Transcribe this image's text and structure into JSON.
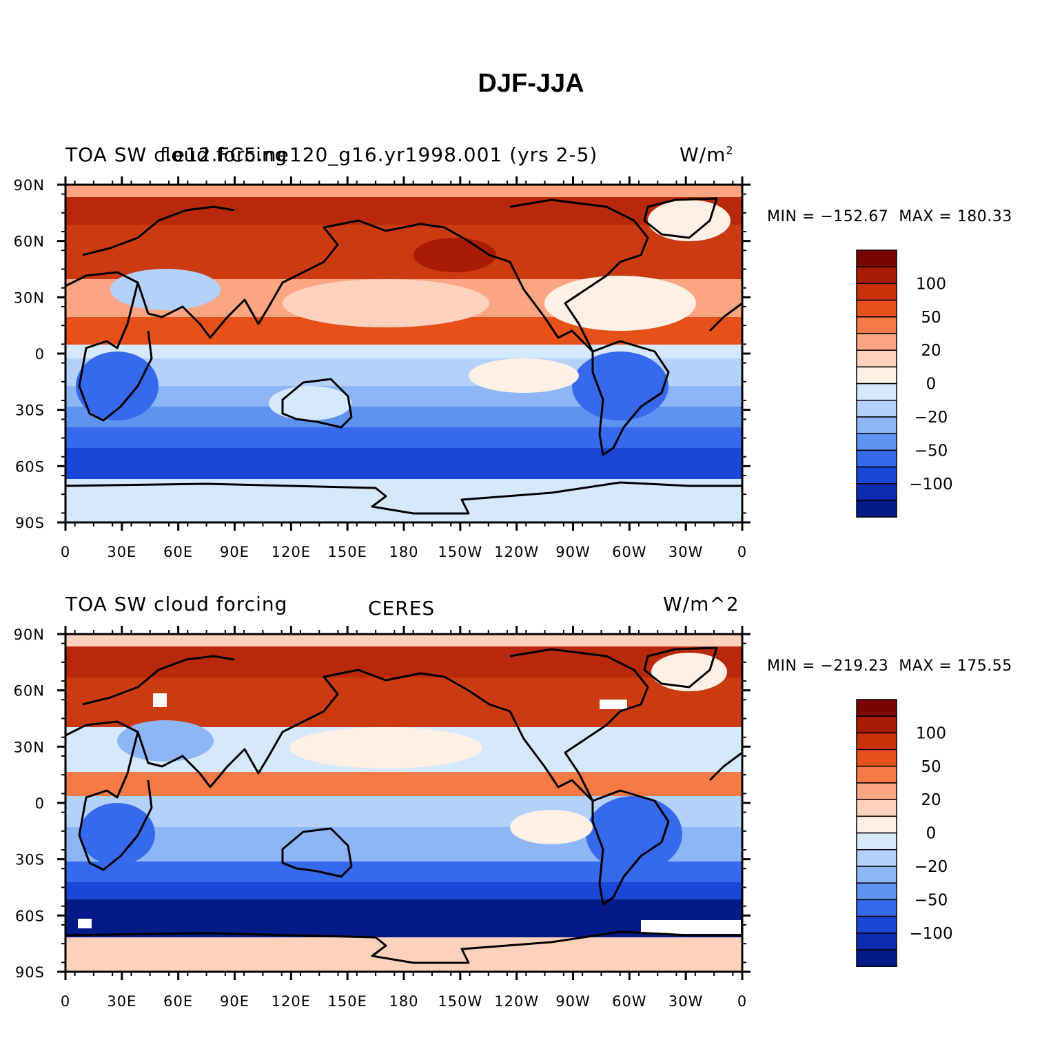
{
  "title": "DJF-JJA",
  "panels": [
    {
      "left_label": "TOA SW cloud forcing",
      "center_label": "f.e12.FC5.ne120_g16.yr1998.001 (yrs 2-5)",
      "right_label": "W/m",
      "right_label_sup": "2",
      "min_label": "MIN",
      "min_value": "−152.67",
      "max_label": "MAX",
      "max_value": "180.33"
    },
    {
      "left_label": "TOA SW cloud forcing",
      "center_label": "CERES",
      "right_label": "W/m^2",
      "right_label_sup": "",
      "min_label": "MIN",
      "min_value": "−219.23",
      "max_label": "MAX",
      "max_value": "175.55"
    }
  ],
  "lat_ticks": [
    "90N",
    "60N",
    "30N",
    "0",
    "30S",
    "60S",
    "90S"
  ],
  "lon_ticks": [
    "0",
    "30E",
    "60E",
    "90E",
    "120E",
    "150E",
    "180",
    "150W",
    "120W",
    "90W",
    "60W",
    "30W",
    "0"
  ],
  "colorbar": {
    "colors": [
      "#7a0403",
      "#a81c05",
      "#cc3209",
      "#e8501a",
      "#f57a45",
      "#fba582",
      "#fdd2bc",
      "#fef0e4",
      "#d6e8fc",
      "#b4d1fa",
      "#8db6f7",
      "#5f93f2",
      "#3669ec",
      "#1a47d6",
      "#0b2cae",
      "#041a86"
    ],
    "labels": [
      "100",
      "50",
      "20",
      "0",
      "−20",
      "−50",
      "−100"
    ]
  }
}
